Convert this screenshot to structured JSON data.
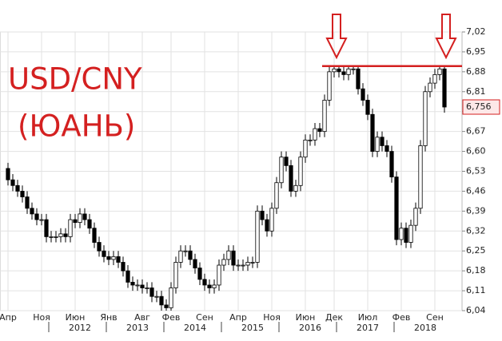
{
  "chart_data": {
    "type": "candlestick",
    "annotations": [
      "USD/CNY",
      "(ЮАНЬ)"
    ],
    "categories": [
      "Апр",
      null,
      null,
      null,
      null,
      null,
      null,
      "Ноя",
      null,
      null,
      null,
      null,
      null,
      null,
      "Июн",
      null,
      null,
      null,
      null,
      null,
      null,
      "Янв",
      null,
      null,
      null,
      null,
      null,
      null,
      "Авг",
      null,
      null,
      null,
      null,
      null,
      "Фев",
      null,
      null,
      null,
      null,
      null,
      null,
      "Сен",
      null,
      null,
      null,
      null,
      null,
      null,
      "Апр",
      null,
      null,
      null,
      null,
      null,
      null,
      "Ноя",
      null,
      null,
      null,
      null,
      null,
      null,
      "Июн",
      null,
      null,
      null,
      null,
      null,
      "Дек",
      null,
      null,
      null,
      null,
      null,
      null,
      "Июл",
      null,
      null,
      null,
      null,
      null,
      null,
      "Фев",
      null,
      null,
      null,
      null,
      null,
      null,
      "Сен",
      null,
      null
    ],
    "year_labels": [
      null,
      null,
      null,
      null,
      null,
      null,
      null,
      null,
      null,
      null,
      null,
      null,
      null,
      null,
      null,
      "2012",
      null,
      null,
      null,
      null,
      null,
      null,
      null,
      null,
      null,
      null,
      null,
      "2013",
      null,
      null,
      null,
      null,
      null,
      null,
      null,
      null,
      null,
      null,
      null,
      "2014",
      null,
      null,
      null,
      null,
      null,
      null,
      null,
      null,
      null,
      null,
      null,
      "2015",
      null,
      null,
      null,
      null,
      null,
      null,
      null,
      null,
      null,
      null,
      null,
      "2016",
      null,
      null,
      null,
      null,
      null,
      null,
      null,
      null,
      null,
      null,
      null,
      "2017",
      null,
      null,
      null,
      null,
      null,
      null,
      null,
      null,
      null,
      null,
      null,
      "2018",
      null,
      null,
      null,
      null
    ],
    "open": [
      6.54,
      6.5,
      6.48,
      6.46,
      6.44,
      6.4,
      6.38,
      6.36,
      6.36,
      6.3,
      6.3,
      6.3,
      6.31,
      6.3,
      6.36,
      6.35,
      6.38,
      6.36,
      6.33,
      6.28,
      6.25,
      6.23,
      6.22,
      6.23,
      6.21,
      6.18,
      6.14,
      6.13,
      6.13,
      6.12,
      6.12,
      6.09,
      6.09,
      6.06,
      6.05,
      6.12,
      6.21,
      6.25,
      6.25,
      6.22,
      6.19,
      6.15,
      6.13,
      6.12,
      6.13,
      6.2,
      6.22,
      6.25,
      6.2,
      6.2,
      6.2,
      6.21,
      6.21,
      6.39,
      6.36,
      6.32,
      6.4,
      6.49,
      6.58,
      6.55,
      6.46,
      6.48,
      6.58,
      6.64,
      6.64,
      6.68,
      6.67,
      6.78,
      6.88,
      6.89,
      6.88,
      6.87,
      6.89,
      6.89,
      6.82,
      6.78,
      6.73,
      6.6,
      6.65,
      6.62,
      6.6,
      6.51,
      6.29,
      6.33,
      6.28,
      6.34,
      6.4,
      6.62,
      6.81,
      6.84,
      6.87,
      6.89
    ],
    "high": [
      6.56,
      6.52,
      6.5,
      6.48,
      6.46,
      6.42,
      6.4,
      6.38,
      6.38,
      6.32,
      6.32,
      6.33,
      6.33,
      6.38,
      6.38,
      6.4,
      6.4,
      6.38,
      6.35,
      6.3,
      6.27,
      6.25,
      6.25,
      6.25,
      6.23,
      6.2,
      6.16,
      6.15,
      6.15,
      6.14,
      6.14,
      6.11,
      6.11,
      6.08,
      6.14,
      6.23,
      6.27,
      6.27,
      6.27,
      6.24,
      6.21,
      6.17,
      6.15,
      6.15,
      6.22,
      6.24,
      6.27,
      6.27,
      6.22,
      6.22,
      6.23,
      6.23,
      6.41,
      6.41,
      6.38,
      6.42,
      6.51,
      6.6,
      6.6,
      6.57,
      6.5,
      6.6,
      6.66,
      6.66,
      6.7,
      6.7,
      6.8,
      6.9,
      6.9,
      6.9,
      6.9,
      6.9,
      6.9,
      6.9,
      6.84,
      6.8,
      6.75,
      6.67,
      6.67,
      6.64,
      6.62,
      6.53,
      6.35,
      6.35,
      6.36,
      6.42,
      6.64,
      6.83,
      6.86,
      6.89,
      6.9,
      6.9
    ],
    "low": [
      6.48,
      6.46,
      6.44,
      6.42,
      6.38,
      6.36,
      6.34,
      6.34,
      6.28,
      6.28,
      6.28,
      6.28,
      6.28,
      6.28,
      6.33,
      6.33,
      6.34,
      6.31,
      6.26,
      6.23,
      6.21,
      6.2,
      6.2,
      6.19,
      6.16,
      6.12,
      6.11,
      6.11,
      6.1,
      6.1,
      6.07,
      6.07,
      6.04,
      6.04,
      6.04,
      6.1,
      6.19,
      6.23,
      6.2,
      6.17,
      6.13,
      6.11,
      6.1,
      6.1,
      6.11,
      6.18,
      6.2,
      6.18,
      6.18,
      6.18,
      6.18,
      6.19,
      6.19,
      6.34,
      6.3,
      6.3,
      6.38,
      6.47,
      6.53,
      6.44,
      6.44,
      6.46,
      6.56,
      6.62,
      6.62,
      6.65,
      6.65,
      6.76,
      6.86,
      6.86,
      6.85,
      6.85,
      6.87,
      6.8,
      6.76,
      6.71,
      6.58,
      6.58,
      6.6,
      6.58,
      6.49,
      6.27,
      6.27,
      6.26,
      6.26,
      6.32,
      6.38,
      6.6,
      6.79,
      6.82,
      6.85,
      6.736
    ],
    "close": [
      6.5,
      6.48,
      6.46,
      6.44,
      6.4,
      6.38,
      6.36,
      6.36,
      6.3,
      6.3,
      6.3,
      6.31,
      6.3,
      6.36,
      6.35,
      6.38,
      6.36,
      6.33,
      6.28,
      6.25,
      6.23,
      6.22,
      6.23,
      6.21,
      6.18,
      6.14,
      6.13,
      6.13,
      6.12,
      6.12,
      6.09,
      6.09,
      6.06,
      6.05,
      6.12,
      6.21,
      6.25,
      6.25,
      6.22,
      6.19,
      6.15,
      6.13,
      6.12,
      6.13,
      6.2,
      6.22,
      6.25,
      6.2,
      6.2,
      6.2,
      6.21,
      6.21,
      6.39,
      6.36,
      6.32,
      6.4,
      6.49,
      6.58,
      6.55,
      6.46,
      6.48,
      6.58,
      6.64,
      6.64,
      6.68,
      6.67,
      6.78,
      6.88,
      6.89,
      6.88,
      6.87,
      6.89,
      6.89,
      6.82,
      6.78,
      6.73,
      6.6,
      6.65,
      6.62,
      6.6,
      6.51,
      6.29,
      6.33,
      6.28,
      6.34,
      6.4,
      6.62,
      6.81,
      6.84,
      6.87,
      6.89,
      6.756
    ],
    "up_color": "#ffffff",
    "down_color": "#000000",
    "annotation_color": "#d42020",
    "resistance_level": 6.9,
    "last_price": {
      "value": 6.756,
      "label": "6,756"
    },
    "ylim": [
      6.04,
      7.02
    ],
    "yticks": [
      {
        "value": 6.04,
        "label": "6,04"
      },
      {
        "value": 6.11,
        "label": "6,11"
      },
      {
        "value": 6.18,
        "label": "6,18"
      },
      {
        "value": 6.25,
        "label": "6,25"
      },
      {
        "value": 6.32,
        "label": "6,32"
      },
      {
        "value": 6.39,
        "label": "6,39"
      },
      {
        "value": 6.46,
        "label": "6,46"
      },
      {
        "value": 6.53,
        "label": "6,53"
      },
      {
        "value": 6.6,
        "label": "6,60"
      },
      {
        "value": 6.67,
        "label": "6,67"
      },
      {
        "value": 6.74,
        "label": "6,74"
      },
      {
        "value": 6.81,
        "label": "6,81"
      },
      {
        "value": 6.88,
        "label": "6,88"
      },
      {
        "value": 6.95,
        "label": "6,95"
      },
      {
        "value": 7.02,
        "label": "7,02"
      }
    ],
    "grid": true
  }
}
